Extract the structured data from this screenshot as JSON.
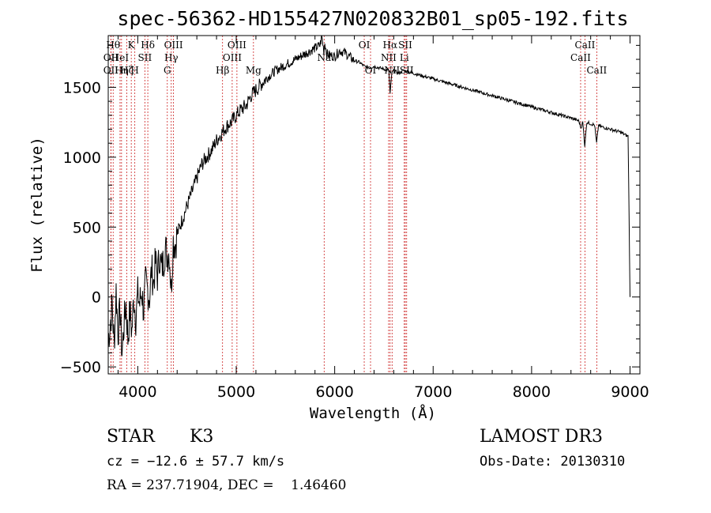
{
  "chart_data": {
    "type": "line",
    "title": "spec-56362-HD155427N020832B01_sp05-192.fits",
    "xlabel": "Wavelength (Å)",
    "ylabel": "Flux (relative)",
    "xlim": [
      3700,
      9100
    ],
    "ylim": [
      -550,
      1870
    ],
    "xticks": [
      4000,
      5000,
      6000,
      7000,
      8000,
      9000
    ],
    "yticks": [
      -500,
      0,
      500,
      1000,
      1500
    ],
    "grid": false,
    "series": [
      {
        "x": [
          3700,
          3720,
          3740,
          3760,
          3780,
          3800,
          3820,
          3840,
          3860,
          3880,
          3900,
          3920,
          3940,
          3960,
          3980,
          4000,
          4020,
          4040,
          4060,
          4080,
          4100,
          4120,
          4140,
          4160,
          4180,
          4200,
          4220,
          4240,
          4260,
          4280,
          4300,
          4320,
          4340,
          4360,
          4380,
          4400,
          4450,
          4500,
          4550,
          4600,
          4650,
          4700,
          4750,
          4800,
          4850,
          4900,
          4950,
          5000,
          5050,
          5100,
          5150,
          5200,
          5250,
          5300,
          5350,
          5400,
          5450,
          5500,
          5550,
          5600,
          5650,
          5700,
          5750,
          5800,
          5850,
          5870,
          5890,
          5900,
          5920,
          5950,
          6000,
          6050,
          6100,
          6150,
          6200,
          6250,
          6300,
          6350,
          6400,
          6450,
          6500,
          6550,
          6563,
          6580,
          6600,
          6650,
          6700,
          6750,
          6800,
          6900,
          7000,
          7100,
          7200,
          7300,
          7400,
          7500,
          7600,
          7700,
          7800,
          7900,
          8000,
          8100,
          8200,
          8300,
          8400,
          8480,
          8500,
          8520,
          8540,
          8560,
          8600,
          8640,
          8660,
          8680,
          8700,
          8800,
          8900,
          8950,
          8980,
          9000
        ],
        "y": [
          -300,
          -200,
          -50,
          -350,
          50,
          -250,
          -100,
          -400,
          -200,
          -50,
          -300,
          -100,
          -250,
          0,
          -150,
          20,
          -50,
          50,
          -100,
          100,
          50,
          0,
          200,
          100,
          250,
          150,
          300,
          200,
          250,
          350,
          300,
          320,
          50,
          400,
          380,
          450,
          550,
          650,
          750,
          850,
          950,
          1000,
          1050,
          1120,
          1170,
          1220,
          1250,
          1300,
          1340,
          1370,
          1440,
          1480,
          1520,
          1560,
          1590,
          1620,
          1640,
          1660,
          1680,
          1700,
          1720,
          1740,
          1760,
          1780,
          1800,
          1860,
          1760,
          1820,
          1740,
          1730,
          1720,
          1760,
          1750,
          1720,
          1690,
          1680,
          1650,
          1640,
          1650,
          1640,
          1630,
          1620,
          1450,
          1600,
          1620,
          1600,
          1620,
          1610,
          1600,
          1580,
          1560,
          1540,
          1520,
          1500,
          1480,
          1460,
          1440,
          1420,
          1400,
          1380,
          1360,
          1340,
          1320,
          1300,
          1280,
          1260,
          1210,
          1250,
          1080,
          1250,
          1240,
          1230,
          1100,
          1230,
          1220,
          1200,
          1180,
          1160,
          1150,
          0
        ]
      }
    ],
    "lines": [
      {
        "x": 3750,
        "label": "Hθ",
        "row": 0
      },
      {
        "x": 3727,
        "label": "OII",
        "row": 1
      },
      {
        "x": 3727,
        "label": "OII",
        "row": 2
      },
      {
        "x": 3820,
        "label": "HeI",
        "row": 1
      },
      {
        "x": 3835,
        "label": "Hη",
        "row": 2
      },
      {
        "x": 3889,
        "label": "Hζ",
        "row": 2
      },
      {
        "x": 3934,
        "label": "K",
        "row": 0
      },
      {
        "x": 3970,
        "label": "H",
        "row": 2
      },
      {
        "x": 4072,
        "label": "SII",
        "row": 1
      },
      {
        "x": 4102,
        "label": "Hδ",
        "row": 0
      },
      {
        "x": 4300,
        "label": "G",
        "row": 2
      },
      {
        "x": 4340,
        "label": "Hγ",
        "row": 1
      },
      {
        "x": 4363,
        "label": "OIII",
        "row": 0
      },
      {
        "x": 4861,
        "label": "Hβ",
        "row": 2
      },
      {
        "x": 4959,
        "label": "OIII",
        "row": 1
      },
      {
        "x": 5007,
        "label": "OIII",
        "row": 0
      },
      {
        "x": 5175,
        "label": "Mg",
        "row": 2
      },
      {
        "x": 5893,
        "label": "Na",
        "row": 1
      },
      {
        "x": 6300,
        "label": "OI",
        "row": 0
      },
      {
        "x": 6364,
        "label": "OI",
        "row": 2
      },
      {
        "x": 6548,
        "label": "NII",
        "row": 1
      },
      {
        "x": 6563,
        "label": "Hα",
        "row": 0
      },
      {
        "x": 6583,
        "label": "NII",
        "row": 2
      },
      {
        "x": 6707,
        "label": "Li",
        "row": 1
      },
      {
        "x": 6717,
        "label": "SII",
        "row": 0
      },
      {
        "x": 6731,
        "label": "SII",
        "row": 2
      },
      {
        "x": 8498,
        "label": "CaII",
        "row": 1
      },
      {
        "x": 8542,
        "label": "CaII",
        "row": 0
      },
      {
        "x": 8662,
        "label": "CaII",
        "row": 2
      }
    ]
  },
  "info": {
    "class": "STAR",
    "subclass": "K3",
    "survey": "LAMOST DR3",
    "cz": "cz = −12.6 ± 57.7 km/s",
    "obs_date": "Obs-Date: 20130310",
    "radec": "RA = 237.71904, DEC =    1.46460"
  }
}
